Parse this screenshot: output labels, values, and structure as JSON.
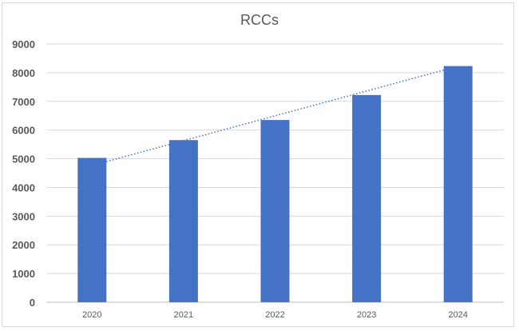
{
  "chart_data": {
    "type": "bar",
    "title": "RCCs",
    "categories": [
      "2020",
      "2021",
      "2022",
      "2023",
      "2024"
    ],
    "values": [
      5030,
      5650,
      6350,
      7220,
      8230
    ],
    "ylim": [
      0,
      9000
    ],
    "yticks": [
      0,
      1000,
      2000,
      3000,
      4000,
      5000,
      6000,
      7000,
      8000,
      9000
    ],
    "xlabel": "",
    "ylabel": "",
    "grid": true,
    "legend": "none",
    "trendline": {
      "type": "linear",
      "style": "dotted"
    },
    "colors": {
      "bar": "#4472c4",
      "trendline": "#4472c4",
      "grid": "#d9d9d9",
      "axis_text": "#595959"
    }
  }
}
